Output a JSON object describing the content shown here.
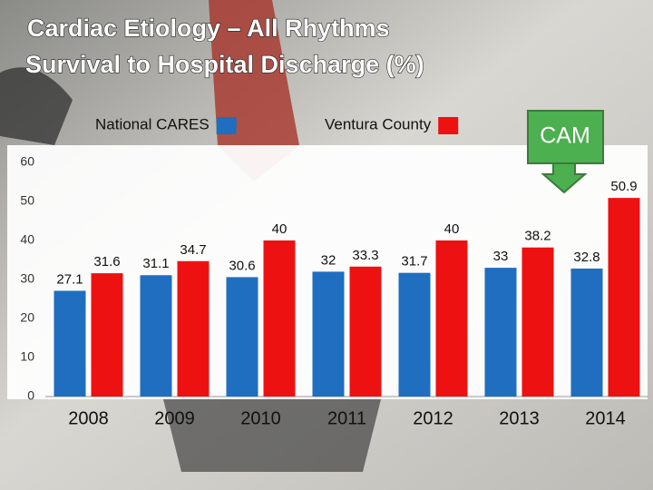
{
  "chart_data": {
    "type": "bar",
    "title": "Cardiac Etiology – All Rhythms",
    "subtitle": "Survival to Hospital Discharge (%)",
    "categories": [
      "2008",
      "2009",
      "2010",
      "2011",
      "2012",
      "2013",
      "2014"
    ],
    "series": [
      {
        "name": "National CARES",
        "color": "#1f6ebf",
        "values": [
          27.1,
          31.1,
          30.6,
          32,
          31.7,
          33,
          32.8
        ]
      },
      {
        "name": "Ventura County",
        "color": "#ee1111",
        "values": [
          31.6,
          34.7,
          40,
          33.3,
          40,
          38.2,
          50.9
        ]
      }
    ],
    "ylim": [
      0,
      60
    ],
    "yticks": [
      0,
      10,
      20,
      30,
      40,
      50,
      60
    ],
    "grid": false,
    "annotation": "CAM",
    "annotation_color": "#4caf50"
  }
}
